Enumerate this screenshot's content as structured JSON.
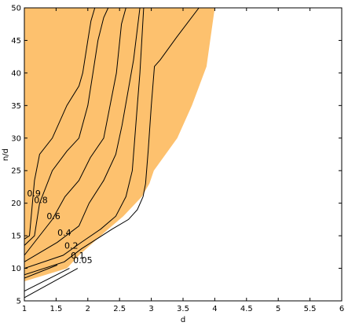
{
  "chart_data": {
    "type": "contour",
    "title": "",
    "xlabel": "d",
    "ylabel": "n/d",
    "xlim": [
      1,
      6
    ],
    "ylim": [
      5,
      50
    ],
    "xticks": [
      1,
      1.5,
      2,
      2.5,
      3,
      3.5,
      4,
      4.5,
      5,
      5.5,
      6
    ],
    "xtick_labels": [
      "1",
      "1.5",
      "2",
      "2.5",
      "3",
      "3.5",
      "4",
      "4.5",
      "5",
      "5.5",
      "6"
    ],
    "yticks": [
      5,
      10,
      15,
      20,
      25,
      30,
      35,
      40,
      45,
      50
    ],
    "ytick_labels": [
      "5",
      "10",
      "15",
      "20",
      "25",
      "30",
      "35",
      "40",
      "45",
      "50"
    ],
    "grid": false,
    "fill_color": "#fdc16e",
    "line_color": "#000000",
    "filled_region": {
      "x": [
        1.0,
        1.0,
        1.67,
        1.86,
        2.32,
        2.56,
        2.85,
        2.97,
        3.04,
        3.41,
        3.64,
        3.87,
        4.0
      ],
      "y": [
        50.0,
        8.0,
        10.0,
        12.0,
        16.0,
        18.0,
        21.0,
        23.0,
        25.0,
        30.0,
        35.0,
        41.0,
        50.0
      ]
    },
    "contours": [
      {
        "level": "0.9",
        "x": [
          1.0,
          1.08,
          1.16,
          1.24,
          1.44,
          1.67,
          1.86,
          1.92,
          2.0,
          2.05,
          2.11
        ],
        "y": [
          14.5,
          15.0,
          23.5,
          27.5,
          30.0,
          35.0,
          38.0,
          40.0,
          45.0,
          48.0,
          50.0
        ]
      },
      {
        "level": "0.8",
        "x": [
          1.0,
          1.16,
          1.24,
          1.44,
          1.67,
          1.86,
          2.0,
          2.08,
          2.16,
          2.25,
          2.32
        ],
        "y": [
          13.5,
          15.0,
          20.0,
          25.0,
          28.0,
          30.0,
          35.0,
          40.0,
          45.0,
          48.5,
          50.0
        ]
      },
      {
        "level": "0.6",
        "x": [
          1.0,
          1.44,
          1.64,
          1.86,
          2.04,
          2.25,
          2.35,
          2.45,
          2.53,
          2.6
        ],
        "y": [
          12.0,
          17.5,
          21.0,
          23.5,
          27.0,
          30.0,
          35.0,
          40.0,
          47.5,
          50.0
        ]
      },
      {
        "level": "0.4",
        "x": [
          1.0,
          1.52,
          1.86,
          2.02,
          2.25,
          2.44,
          2.54,
          2.63,
          2.72,
          2.82
        ],
        "y": [
          11.0,
          14.0,
          16.5,
          20.0,
          23.5,
          27.5,
          32.0,
          37.0,
          42.0,
          50.0
        ]
      },
      {
        "level": "0.2",
        "x": [
          1.0,
          1.61,
          1.9,
          2.2,
          2.44,
          2.6,
          2.7,
          2.74,
          2.78,
          2.82,
          2.88
        ],
        "y": [
          10.0,
          12.0,
          14.0,
          16.0,
          18.0,
          21.0,
          25.0,
          30.0,
          35.0,
          40.0,
          50.0
        ]
      },
      {
        "level": "0.1",
        "x": [
          1.0,
          1.63,
          1.9,
          2.38,
          2.64,
          2.78,
          2.87,
          2.91,
          2.95,
          3.0,
          3.05,
          3.14,
          3.4,
          3.75
        ],
        "y": [
          9.0,
          11.0,
          13.0,
          16.0,
          17.5,
          19.0,
          21.0,
          23.0,
          28.0,
          35.0,
          41.0,
          42.0,
          45.5,
          50.0
        ]
      },
      {
        "level": "0.05",
        "x": [
          1.0,
          1.84
        ],
        "y": [
          5.5,
          10.0
        ]
      },
      {
        "level": "",
        "x": [
          1.0,
          1.71
        ],
        "y": [
          6.5,
          10.0
        ]
      },
      {
        "level": "",
        "x": [
          1.0,
          1.52
        ],
        "y": [
          8.5,
          10.5
        ]
      }
    ],
    "contour_labels": [
      {
        "text": "0.9",
        "x": 1.15,
        "y": 21.5
      },
      {
        "text": "0.8",
        "x": 1.26,
        "y": 20.5
      },
      {
        "text": "0.6",
        "x": 1.46,
        "y": 18.0
      },
      {
        "text": "0.4",
        "x": 1.63,
        "y": 15.5
      },
      {
        "text": "0.2",
        "x": 1.74,
        "y": 13.5
      },
      {
        "text": "0.1",
        "x": 1.84,
        "y": 12.0
      },
      {
        "text": "0.05",
        "x": 1.92,
        "y": 11.3
      }
    ]
  }
}
